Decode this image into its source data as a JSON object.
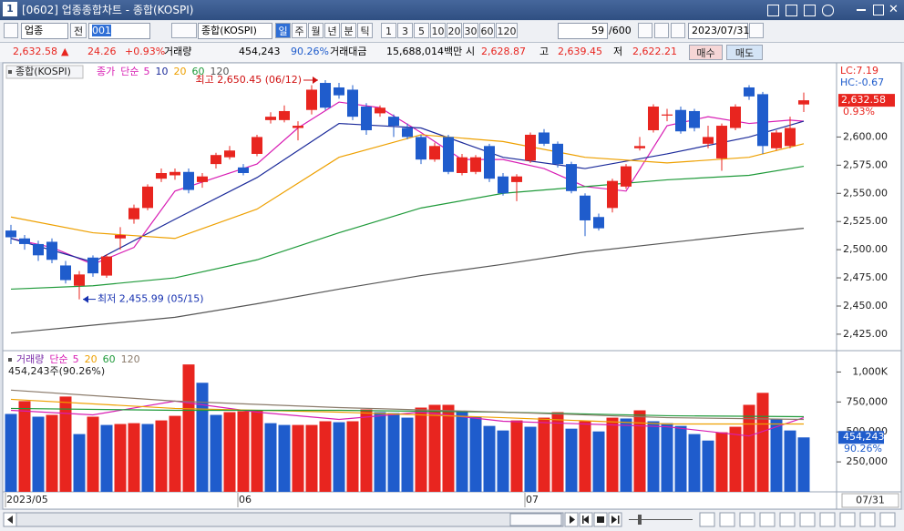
{
  "window": {
    "number": "1",
    "title": "[0602] 업종종합차트 - 종합(KOSPI)"
  },
  "toolbar": {
    "market": "업종",
    "all": "전",
    "code": "001",
    "name": "종합(KOSPI)",
    "periods": [
      "일",
      "주",
      "월",
      "년",
      "분",
      "틱"
    ],
    "intervals": [
      "1",
      "3",
      "5",
      "10",
      "20",
      "30",
      "60",
      "120"
    ],
    "count": "59",
    "max": "/600",
    "date": "2023/07/31"
  },
  "quote": {
    "price": "2,632.58",
    "arrow": "▲",
    "change": "24.26",
    "rate": "+0.93%",
    "volume_label": "거래량",
    "volume": "454,243",
    "volume_rate": "90.26%",
    "amount_label": "거래대금",
    "amount": "15,688,014백만",
    "open_label": "시",
    "open": "2,628.87",
    "high_label": "고",
    "high": "2,639.45",
    "low_label": "저",
    "low": "2,622.21",
    "buy": "매수",
    "sell": "매도"
  },
  "chart_data": [
    {
      "type": "candlestick",
      "symbol": "종합(KOSPI)",
      "legend_name": "종가",
      "method": "단순",
      "categories": [
        "2023/05",
        null,
        null,
        null,
        null,
        null,
        null,
        null,
        null,
        null,
        null,
        null,
        null,
        null,
        null,
        null,
        null,
        "06",
        null,
        null,
        null,
        null,
        null,
        null,
        null,
        null,
        null,
        null,
        null,
        null,
        null,
        null,
        null,
        null,
        null,
        null,
        null,
        null,
        "07",
        null,
        null,
        null,
        null,
        null,
        null,
        null,
        null,
        null,
        null,
        null,
        null,
        null,
        null,
        null,
        null,
        null,
        null,
        null,
        null
      ],
      "x_end_label": "07/31",
      "open": [
        2517,
        2510,
        2505,
        2507,
        2486,
        2468,
        2493,
        2477,
        2510,
        2527,
        2537,
        2563,
        2566,
        2569,
        2560,
        2576,
        2582,
        2573,
        2585,
        2615,
        2615,
        2608,
        2624,
        2648,
        2644,
        2642,
        2627,
        2621,
        2618,
        2608,
        2600,
        2580,
        2600,
        2568,
        2569,
        2592,
        2565,
        2560,
        2579,
        2604,
        2594,
        2576,
        2548,
        2529,
        2537,
        2556,
        2590,
        2606,
        2619,
        2624,
        2623,
        2594,
        2581,
        2608,
        2644,
        2638,
        2590,
        2592,
        2628.87
      ],
      "high": [
        2522,
        2513,
        2508,
        2510,
        2490,
        2481,
        2495,
        2496,
        2520,
        2540,
        2558,
        2572,
        2572,
        2572,
        2568,
        2586,
        2592,
        2576,
        2602,
        2622,
        2628,
        2614,
        2646,
        2650.45,
        2648,
        2646,
        2630,
        2628,
        2620,
        2612,
        2602,
        2595,
        2602,
        2585,
        2584,
        2594,
        2568,
        2567,
        2604,
        2607,
        2596,
        2578,
        2550,
        2532,
        2563,
        2576,
        2600,
        2629,
        2625,
        2627,
        2625,
        2610,
        2612,
        2629,
        2646,
        2640,
        2606,
        2618,
        2639.45
      ],
      "low": [
        2505,
        2500,
        2490,
        2488,
        2470,
        2455.99,
        2476,
        2475,
        2500,
        2523,
        2535,
        2560,
        2562,
        2550,
        2555,
        2572,
        2580,
        2566,
        2583,
        2612,
        2613,
        2597,
        2620,
        2624,
        2634,
        2615,
        2602,
        2618,
        2600,
        2598,
        2576,
        2578,
        2567,
        2566,
        2567,
        2560,
        2548,
        2543,
        2577,
        2592,
        2573,
        2550,
        2512,
        2517,
        2533,
        2554,
        2588,
        2604,
        2614,
        2603,
        2605,
        2590,
        2570,
        2606,
        2633,
        2585,
        2588,
        2590,
        2622.21
      ],
      "close": [
        2511,
        2505,
        2495,
        2491,
        2473,
        2478,
        2479,
        2494,
        2513,
        2537,
        2556,
        2568,
        2569,
        2553,
        2565,
        2584,
        2588,
        2568,
        2600,
        2618,
        2623,
        2610,
        2642,
        2626,
        2637,
        2618,
        2606,
        2626,
        2610,
        2600,
        2580,
        2592,
        2569,
        2582,
        2582,
        2563,
        2550,
        2565,
        2602,
        2594,
        2576,
        2552,
        2526,
        2519,
        2561,
        2574,
        2592,
        2627,
        2620,
        2605,
        2608,
        2600,
        2610,
        2627,
        2636,
        2592,
        2604,
        2608,
        2632.58
      ],
      "up_color": "#e8251f",
      "down_color": "#1f5ccc",
      "lines": [
        {
          "name": "5",
          "color": "#d81eb4",
          "x": [
            0,
            3,
            6,
            9,
            12,
            15,
            18,
            21,
            24,
            27,
            30,
            33,
            36,
            39,
            42,
            45,
            48,
            51,
            54,
            57,
            58
          ],
          "values": [
            2510,
            2502,
            2487,
            2502,
            2552,
            2564,
            2576,
            2608,
            2631,
            2626,
            2604,
            2580,
            2580,
            2572,
            2556,
            2552,
            2610,
            2618,
            2612,
            2615,
            2614
          ]
        },
        {
          "name": "10",
          "color": "#1b2a9a",
          "x": [
            0,
            6,
            12,
            18,
            24,
            30,
            36,
            42,
            48,
            54,
            58
          ],
          "values": [
            2510,
            2489,
            2527,
            2564,
            2612,
            2608,
            2582,
            2572,
            2585,
            2600,
            2614
          ]
        },
        {
          "name": "20",
          "color": "#eea000",
          "x": [
            0,
            6,
            12,
            18,
            24,
            30,
            36,
            42,
            48,
            54,
            58
          ],
          "values": [
            2529,
            2515,
            2510,
            2536,
            2582,
            2602,
            2596,
            2582,
            2577,
            2582,
            2594
          ]
        },
        {
          "name": "60",
          "color": "#1f9a3a",
          "x": [
            0,
            6,
            12,
            18,
            24,
            30,
            36,
            42,
            48,
            54,
            58
          ],
          "values": [
            2465,
            2468,
            2475,
            2491,
            2515,
            2537,
            2550,
            2556,
            2562,
            2566,
            2574
          ]
        },
        {
          "name": "120",
          "color": "#555555",
          "x": [
            0,
            6,
            12,
            18,
            24,
            30,
            36,
            42,
            48,
            54,
            58
          ],
          "values": [
            2426,
            2433,
            2440,
            2452,
            2465,
            2477,
            2487,
            2498,
            2506,
            2514,
            2519
          ]
        }
      ],
      "ylim": [
        2412,
        2665
      ],
      "yticks": [
        {
          "value": 2425,
          "label": "2,425.00"
        },
        {
          "value": 2450,
          "label": "2,450.00"
        },
        {
          "value": 2475,
          "label": "2,475.00"
        },
        {
          "value": 2500,
          "label": "2,500.00"
        },
        {
          "value": 2525,
          "label": "2,525.00"
        },
        {
          "value": 2550,
          "label": "2,550.00"
        },
        {
          "value": 2575,
          "label": "2,575.00"
        },
        {
          "value": 2600,
          "label": "2,600.00"
        }
      ],
      "annotations": [
        {
          "text": "최고 2,650.45 (06/12)",
          "at": "high",
          "color": "#d01010"
        },
        {
          "text": "최저 2,455.99 (05/15)",
          "at": "low",
          "color": "#1530b0"
        }
      ],
      "side_labels": {
        "lc": "LC:7.19",
        "hc": "HC:-0.67",
        "price": "2,632.58",
        "rate": "0.93%"
      }
    },
    {
      "type": "bar",
      "legend_name": "거래량",
      "method": "단순",
      "caption": "454,243주(90.26%)",
      "values": [
        650000,
        757000,
        627000,
        642000,
        795000,
        482000,
        627000,
        558000,
        566000,
        573000,
        566000,
        596000,
        634000,
        1063000,
        910000,
        642000,
        665000,
        673000,
        680000,
        573000,
        558000,
        558000,
        558000,
        589000,
        581000,
        589000,
        688000,
        665000,
        657000,
        619000,
        703000,
        726000,
        726000,
        665000,
        627000,
        550000,
        512000,
        596000,
        543000,
        619000,
        665000,
        527000,
        589000,
        504000,
        619000,
        612000,
        680000,
        589000,
        573000,
        550000,
        482000,
        428000,
        497000,
        543000,
        726000,
        826000,
        604000,
        512000,
        454243
      ],
      "up_color": "#e8251f",
      "down_color": "#1f5ccc",
      "lines": [
        {
          "name": "5",
          "color": "#d81eb4",
          "x": [
            0,
            6,
            12,
            18,
            24,
            30,
            36,
            42,
            48,
            54,
            58
          ],
          "values": [
            680000,
            642000,
            757000,
            665000,
            604000,
            665000,
            589000,
            566000,
            543000,
            466000,
            619000
          ]
        },
        {
          "name": "20",
          "color": "#eea000",
          "x": [
            0,
            12,
            24,
            36,
            48,
            58
          ],
          "values": [
            772000,
            696000,
            665000,
            619000,
            566000,
            566000
          ]
        },
        {
          "name": "60",
          "color": "#1f9a3a",
          "x": [
            0,
            12,
            24,
            36,
            48,
            58
          ],
          "values": [
            696000,
            680000,
            680000,
            665000,
            635000,
            627000
          ]
        },
        {
          "name": "120",
          "color": "#8a7a6a",
          "x": [
            0,
            12,
            24,
            36,
            48,
            58
          ],
          "values": [
            849000,
            757000,
            703000,
            665000,
            619000,
            604000
          ]
        }
      ],
      "ylim": [
        0,
        1140000
      ],
      "yticks": [
        {
          "value": 250000,
          "label": "250,000"
        },
        {
          "value": 500000,
          "label": "500,000"
        },
        {
          "value": 750000,
          "label": "750,000"
        },
        {
          "value": 1000000,
          "label": "1,000K"
        }
      ],
      "side_labels": {
        "volume": "454,243",
        "rate": "90.26%"
      }
    }
  ]
}
